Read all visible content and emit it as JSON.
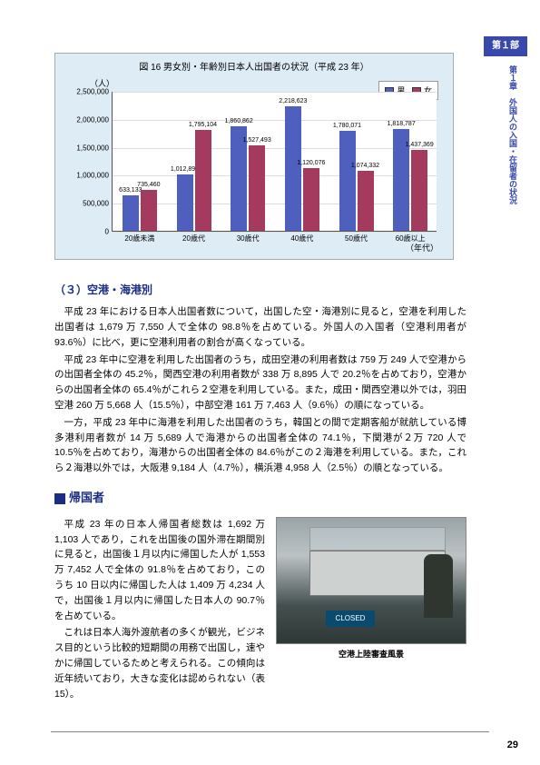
{
  "sideTab": "第１部",
  "sideVertical": "第１章　外国人の入国・在留者の状況",
  "chart": {
    "title": "図 16 男女別・年齢別日本人出国者の状況（平成 23 年）",
    "yLabel": "（人）",
    "xLabel": "（年代）",
    "legend": {
      "male": "男",
      "female": "女"
    },
    "colors": {
      "male": "#4f5fbe",
      "female": "#a43a5e",
      "plot_bg": "#ffffff",
      "chart_bg": "#deecf6",
      "grid": "#dddddd"
    },
    "ymax": 2500000,
    "ytick_step": 500000,
    "categories": [
      "20歳未満",
      "20歳代",
      "30歳代",
      "40歳代",
      "50歳代",
      "60歳以上"
    ],
    "male": [
      633133,
      1012890,
      1860862,
      2218623,
      1780071,
      1818787
    ],
    "female": [
      735460,
      1795104,
      1527493,
      1120076,
      1074332,
      1437369
    ]
  },
  "section3": {
    "heading": "（３）空港・海港別",
    "p1": "平成 23 年における日本人出国者数について，出国した空・海港別に見ると，空港を利用した出国者は 1,679 万 7,550 人で全体の 98.8％を占めている。外国人の入国者（空港利用者が 93.6％）に比べ，更に空港利用者の割合が高くなっている。",
    "p2": "平成 23 年中に空港を利用した出国者のうち，成田空港の利用者数は 759 万 249 人で空港からの出国者全体の 45.2％，関西空港の利用者数が 338 万 8,895 人で 20.2％を占めており，空港からの出国者全体の 65.4％がこれら２空港を利用している。また，成田・関西空港以外では，羽田空港 260 万 5,668 人（15.5％），中部空港 161 万 7,463 人（9.6％）の順になっている。",
    "p3": "一方，平成 23 年中に海港を利用した出国者のうち，韓国との間で定期客船が就航している博多港利用者数が 14 万 5,689 人で海港からの出国者全体の 74.1％，下関港が２万 720 人で 10.5％を占めており，海港からの出国者全体の 84.6％がこの２海港を利用している。また，これら２海港以外では，大阪港 9,184 人（4.7％），横浜港 4,958 人（2.5％）の順となっている。"
  },
  "section4": {
    "heading": "帰国者",
    "p1": "平成 23 年の日本人帰国者総数は 1,692 万 1,103 人であり，これを出国後の国外滞在期間別に見ると，出国後１月以内に帰国した人が 1,553 万 7,452 人で全体の 91.8％を占めており，このうち 10 日以内に帰国した人は 1,409 万 4,234 人で，出国後１月以内に帰国した日本人の 90.7％を占めている。",
    "p2": "これは日本人海外渡航者の多くが観光，ビジネス目的という比較的短期間の用務で出国し，速やかに帰国しているためと考えられる。この傾向は近年続いており，大きな変化は認められない（表 15）。",
    "photoCaption": "空港上陸審査風景",
    "sign": "CLOSED"
  },
  "pageNum": "29"
}
